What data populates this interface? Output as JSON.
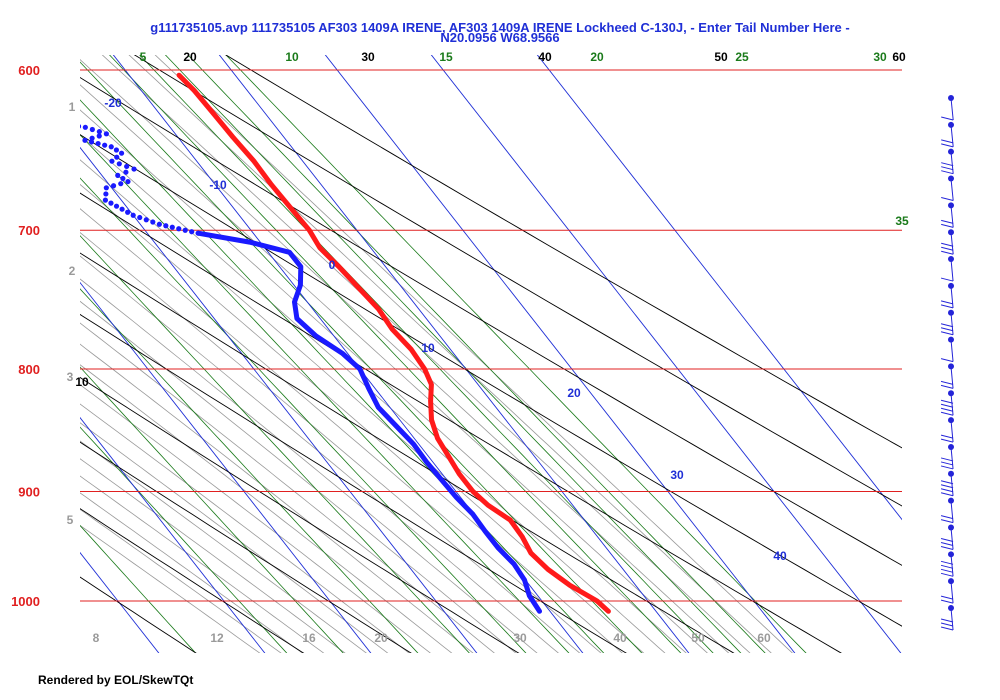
{
  "header": {
    "line1": "g111735105.avp 111735105 AF303 1409A IRENE, AF303 1409A IRENE Lockheed C-130J, - Enter Tail Number Here -",
    "line2": "N20.0956 W68.9566"
  },
  "footer": {
    "text": "Rendered by EOL/SkewTQt"
  },
  "colors": {
    "isobar": "#e02020",
    "isotherm": "#1f2fd6",
    "dry_adiabat": "#000000",
    "moist_adiabat": "#9a9a9a",
    "mixing_ratio": "#1a7a1a",
    "temperature": "#ff1a1a",
    "dewpoint": "#1a1aff",
    "wind": "#2424d8"
  },
  "chart_data": {
    "type": "skew-t",
    "pressure_axis": {
      "levels": [
        600,
        700,
        800,
        900,
        1000
      ],
      "labels": [
        "600",
        "700",
        "800",
        "900",
        "1000"
      ],
      "range": [
        600,
        1050
      ],
      "scale": "log"
    },
    "isotherms": {
      "labels": [
        "-20",
        "-10",
        "0",
        "10",
        "20",
        "30",
        "40"
      ]
    },
    "dry_adiabat_labels": [
      "20",
      "30",
      "40",
      "50",
      "60",
      "10"
    ],
    "mixing_ratio_labels": [
      "5",
      "10",
      "15",
      "20",
      "25",
      "30",
      "35"
    ],
    "moist_adiabat_labels": [
      "8",
      "12",
      "16",
      "20",
      "30",
      "40",
      "50",
      "60"
    ],
    "height_labels": [
      "1",
      "2",
      "3",
      "5"
    ],
    "temperature": {
      "p": [
        1010,
        1000,
        985,
        970,
        955,
        940,
        925,
        912,
        900,
        885,
        870,
        855,
        840,
        825,
        812,
        800,
        785,
        770,
        755,
        740,
        725,
        712,
        700,
        685,
        670,
        655,
        640,
        625,
        612,
        603
      ],
      "t": [
        25.5,
        25.2,
        23.8,
        22.9,
        22.5,
        22.9,
        23.0,
        22.0,
        21.6,
        21.6,
        21.9,
        22.2,
        23.0,
        24.3,
        25.6,
        26.1,
        26.3,
        26.0,
        26.2,
        25.9,
        25.6,
        25.2,
        25.5,
        25.4,
        25.3,
        25.4,
        25.2,
        25.1,
        25.0,
        24.7
      ]
    },
    "dewpoint": {
      "p": [
        1010,
        995,
        980,
        965,
        950,
        935,
        920,
        905,
        890,
        875,
        860,
        845,
        830,
        815,
        800,
        788,
        775,
        762,
        750,
        738,
        725,
        715,
        708,
        702,
        696,
        690,
        680,
        672,
        668,
        664,
        660,
        655,
        650,
        646,
        642,
        638,
        634,
        630,
        626,
        620,
        616,
        612,
        608,
        603
      ],
      "td": [
        19.0,
        19.2,
        19.9,
        20.1,
        19.8,
        19.8,
        19.9,
        19.6,
        19.5,
        19.4,
        19.5,
        19.2,
        18.9,
        19.4,
        20.0,
        19.5,
        18.3,
        17.8,
        18.8,
        20.6,
        22.0,
        22.0,
        19.0,
        14.8,
        11.8,
        10.0,
        8.5,
        9.5,
        12.0,
        11.5,
        13.5,
        12.0,
        13.5,
        13.0,
        11.0,
        13.5,
        12.0,
        8.0,
        3.0,
        -2.0,
        -6.0,
        -8.0,
        -4.0,
        -2.0
      ]
    },
    "wind_barbs": {
      "count": 20
    }
  }
}
